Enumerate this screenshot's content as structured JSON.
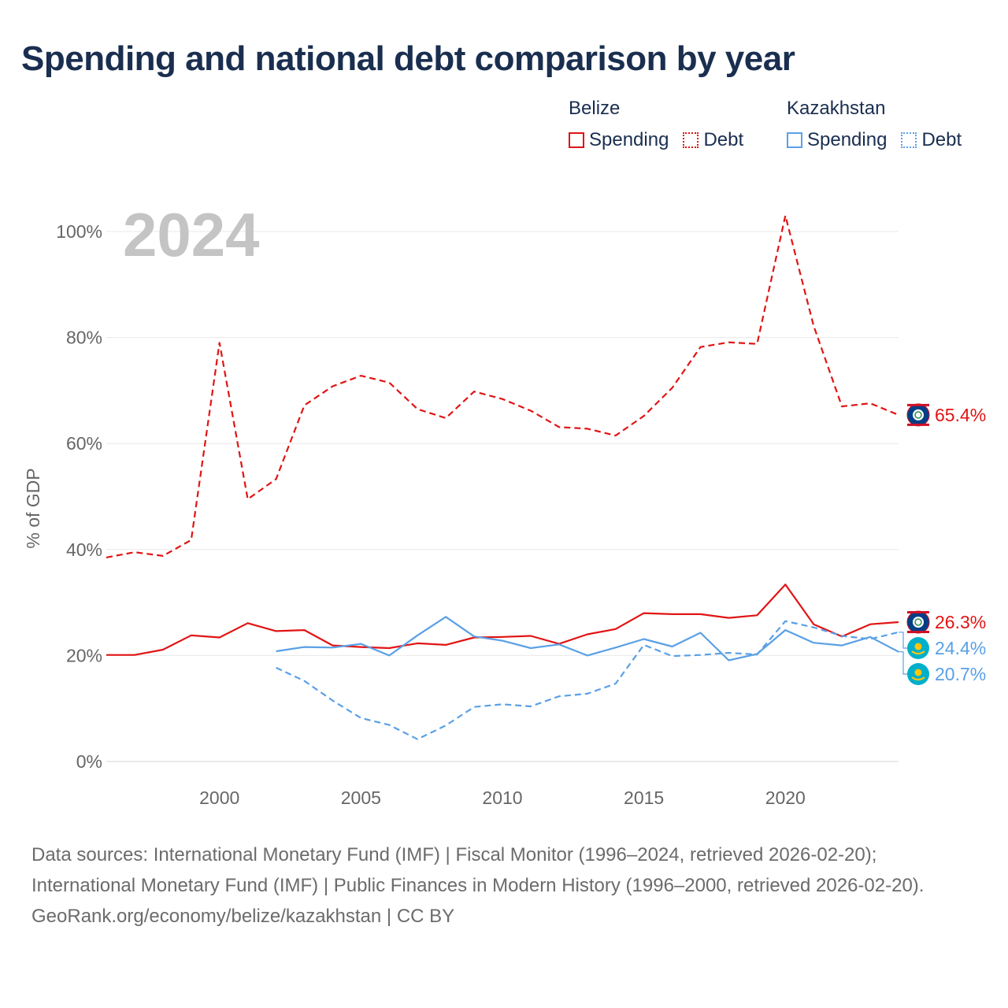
{
  "title": "Spending and national debt comparison by year",
  "legend": [
    {
      "country": "Belize",
      "color": "#e11414",
      "items": [
        {
          "label": "Spending",
          "style": "solid"
        },
        {
          "label": "Debt",
          "style": "dotted"
        }
      ]
    },
    {
      "country": "Kazakhstan",
      "color": "#5aa0e6",
      "items": [
        {
          "label": "Spending",
          "style": "solid"
        },
        {
          "label": "Debt",
          "style": "dotted"
        }
      ]
    }
  ],
  "footer": {
    "sources": "Data sources: International Monetary Fund (IMF) | Fiscal Monitor (1996–2024, retrieved 2026-02-20); International Monetary Fund (IMF) | Public Finances in Modern History (1996–2000, retrieved 2026-02-20).",
    "credit": "GeoRank.org/economy/belize/kazakhstan | CC BY"
  },
  "chart_data": {
    "type": "line",
    "title": "Spending and national debt comparison by year",
    "year_label": "2024",
    "xlabel": "",
    "ylabel": "% of GDP",
    "xlim": [
      1996,
      2024
    ],
    "ylim": [
      0,
      100
    ],
    "x_ticks": [
      2000,
      2005,
      2010,
      2015,
      2020
    ],
    "y_ticks": [
      0,
      20,
      40,
      60,
      80,
      100
    ],
    "y_tick_labels": [
      "0%",
      "20%",
      "40%",
      "60%",
      "80%",
      "100%"
    ],
    "grid": true,
    "series": [
      {
        "name": "Belize Debt",
        "country": "Belize",
        "kind": "Debt",
        "color": "#e11414",
        "dash": "dashed",
        "x": [
          1996,
          1997,
          1998,
          1999,
          2000,
          2001,
          2002,
          2003,
          2004,
          2005,
          2006,
          2007,
          2008,
          2009,
          2010,
          2011,
          2012,
          2013,
          2014,
          2015,
          2016,
          2017,
          2018,
          2019,
          2020,
          2021,
          2022,
          2023,
          2024
        ],
        "values": [
          38.5,
          39.5,
          38.8,
          41.8,
          79,
          49.5,
          53.3,
          67.2,
          70.8,
          72.8,
          71.5,
          66.5,
          64.8,
          69.8,
          68.4,
          66.2,
          63.1,
          62.8,
          61.5,
          65.2,
          70.5,
          78.2,
          79.1,
          78.8,
          103,
          82.2,
          67.0,
          67.6,
          65.4
        ],
        "end_label": "65.4%",
        "flag": "belize"
      },
      {
        "name": "Belize Spending",
        "country": "Belize",
        "kind": "Spending",
        "color": "#e11414",
        "dash": "solid",
        "x": [
          1996,
          1997,
          1998,
          1999,
          2000,
          2001,
          2002,
          2003,
          2004,
          2005,
          2006,
          2007,
          2008,
          2009,
          2010,
          2011,
          2012,
          2013,
          2014,
          2015,
          2016,
          2017,
          2018,
          2019,
          2020,
          2021,
          2022,
          2023,
          2024
        ],
        "values": [
          20.1,
          20.1,
          21.1,
          23.8,
          23.4,
          26.1,
          24.6,
          24.8,
          21.9,
          21.6,
          21.4,
          22.3,
          22.0,
          23.4,
          23.5,
          23.7,
          22.2,
          24.0,
          25.0,
          28.0,
          27.8,
          27.8,
          27.1,
          27.6,
          33.4,
          25.9,
          23.6,
          25.9,
          26.3
        ],
        "end_label": "26.3%",
        "flag": "belize"
      },
      {
        "name": "Kazakhstan Debt",
        "country": "Kazakhstan",
        "kind": "Debt",
        "color": "#5aa0e6",
        "dash": "dashed",
        "x": [
          2002,
          2003,
          2004,
          2005,
          2006,
          2007,
          2008,
          2009,
          2010,
          2011,
          2012,
          2013,
          2014,
          2015,
          2016,
          2017,
          2018,
          2019,
          2020,
          2021,
          2022,
          2023,
          2024
        ],
        "values": [
          17.7,
          15.2,
          11.5,
          8.2,
          6.9,
          4.2,
          6.8,
          10.3,
          10.8,
          10.4,
          12.3,
          12.8,
          14.7,
          22.0,
          19.9,
          20.1,
          20.5,
          20.2,
          26.5,
          25.3,
          23.7,
          23.1,
          24.4
        ],
        "end_label": "24.4%",
        "flag": "kazakhstan"
      },
      {
        "name": "Kazakhstan Spending",
        "country": "Kazakhstan",
        "kind": "Spending",
        "color": "#5aa0e6",
        "dash": "solid",
        "x": [
          2002,
          2003,
          2004,
          2005,
          2006,
          2007,
          2008,
          2009,
          2010,
          2011,
          2012,
          2013,
          2014,
          2015,
          2016,
          2017,
          2018,
          2019,
          2020,
          2021,
          2022,
          2023,
          2024
        ],
        "values": [
          20.8,
          21.6,
          21.5,
          22.2,
          20.0,
          23.8,
          27.3,
          23.6,
          22.8,
          21.4,
          22.1,
          20.0,
          21.5,
          23.1,
          21.7,
          24.3,
          19.1,
          20.3,
          24.8,
          22.4,
          21.9,
          23.5,
          20.7
        ],
        "end_label": "20.7%",
        "flag": "kazakhstan"
      }
    ]
  }
}
